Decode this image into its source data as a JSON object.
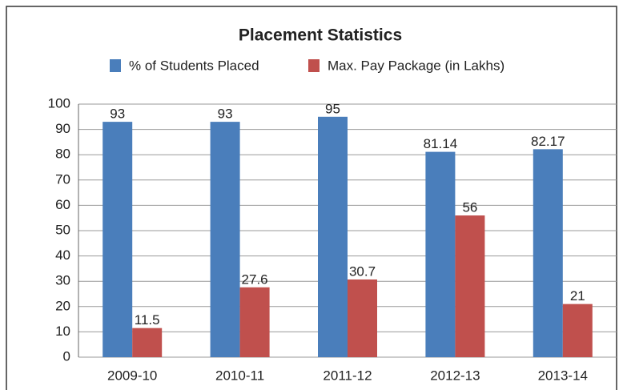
{
  "chart_data": {
    "type": "bar",
    "title": "Placement Statistics",
    "categories": [
      "2009-10",
      "2010-11",
      "2011-12",
      "2012-13",
      "2013-14"
    ],
    "series": [
      {
        "name": "% of Students Placed",
        "color": "#4a7ebb",
        "values": [
          93,
          93,
          95,
          81.14,
          82.17
        ]
      },
      {
        "name": "Max. Pay Package (in Lakhs)",
        "color": "#c0504d",
        "values": [
          11.5,
          27.6,
          30.7,
          56,
          21
        ]
      }
    ],
    "ylim": [
      0,
      100
    ],
    "yticks": [
      0,
      10,
      20,
      30,
      40,
      50,
      60,
      70,
      80,
      90,
      100
    ],
    "grid": true
  }
}
